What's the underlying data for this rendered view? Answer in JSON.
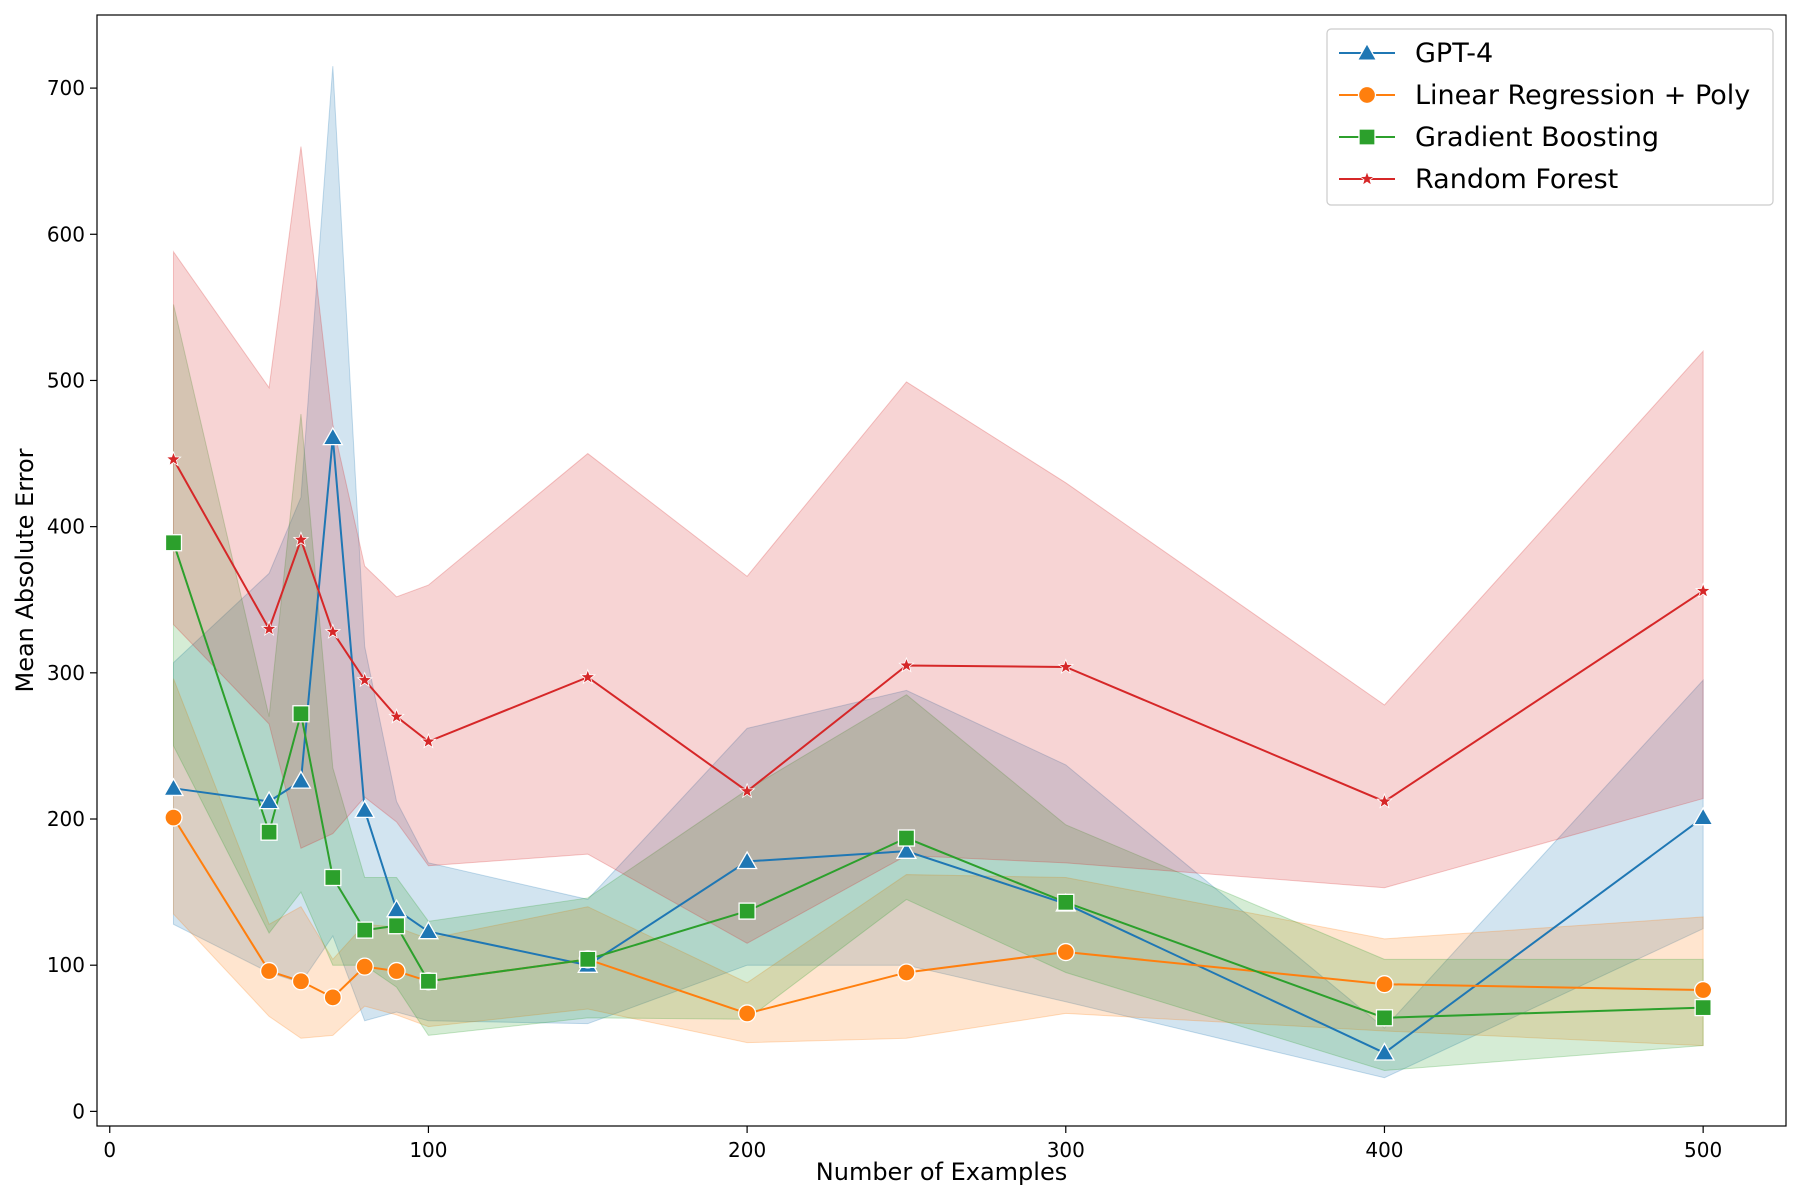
{
  "chart_data": {
    "type": "line",
    "title": "",
    "xlabel": "Number of Examples",
    "ylabel": "Mean Absolute Error",
    "xlim": [
      -4,
      526
    ],
    "ylim": [
      -10,
      750
    ],
    "xticks": [
      0,
      100,
      200,
      300,
      400,
      500
    ],
    "yticks": [
      0,
      100,
      200,
      300,
      400,
      500,
      600,
      700
    ],
    "grid": false,
    "legend_position": "top-right",
    "x": [
      20,
      50,
      60,
      70,
      80,
      90,
      100,
      150,
      200,
      250,
      300,
      400,
      500
    ],
    "series": [
      {
        "name": "GPT-4",
        "color": "#1f77b4",
        "marker": "triangle",
        "values": [
          221,
          212,
          226,
          461,
          206,
          138,
          123,
          100,
          171,
          178,
          142,
          40,
          201
        ],
        "lower": [
          128,
          95,
          88,
          120,
          62,
          68,
          62,
          60,
          100,
          100,
          75,
          23,
          125
        ],
        "upper": [
          307,
          368,
          420,
          715,
          318,
          212,
          170,
          145,
          262,
          288,
          237,
          57,
          295
        ]
      },
      {
        "name": "Linear Regression + Poly",
        "color": "#ff7f0e",
        "marker": "circle",
        "values": [
          201,
          96,
          89,
          78,
          99,
          96,
          89,
          104,
          67,
          95,
          109,
          87,
          83
        ],
        "lower": [
          135,
          65,
          50,
          52,
          72,
          66,
          58,
          70,
          47,
          50,
          67,
          55,
          45
        ],
        "upper": [
          296,
          128,
          140,
          104,
          128,
          126,
          118,
          140,
          88,
          162,
          160,
          118,
          133
        ]
      },
      {
        "name": "Gradient Boosting",
        "color": "#2ca02c",
        "marker": "square",
        "values": [
          389,
          191,
          272,
          160,
          124,
          127,
          89,
          104,
          137,
          187,
          143,
          64,
          71
        ],
        "lower": [
          250,
          122,
          150,
          100,
          100,
          85,
          52,
          64,
          63,
          145,
          95,
          28,
          45
        ],
        "upper": [
          552,
          270,
          477,
          235,
          160,
          160,
          130,
          146,
          220,
          285,
          196,
          104,
          104
        ]
      },
      {
        "name": "Random Forest",
        "color": "#d62728",
        "marker": "star",
        "values": [
          446,
          330,
          391,
          328,
          295,
          270,
          253,
          297,
          219,
          305,
          304,
          212,
          356
        ],
        "lower": [
          333,
          265,
          180,
          190,
          215,
          198,
          168,
          176,
          115,
          175,
          170,
          153,
          214
        ],
        "upper": [
          588,
          495,
          660,
          470,
          373,
          352,
          360,
          450,
          366,
          499,
          430,
          278,
          520
        ]
      }
    ]
  }
}
